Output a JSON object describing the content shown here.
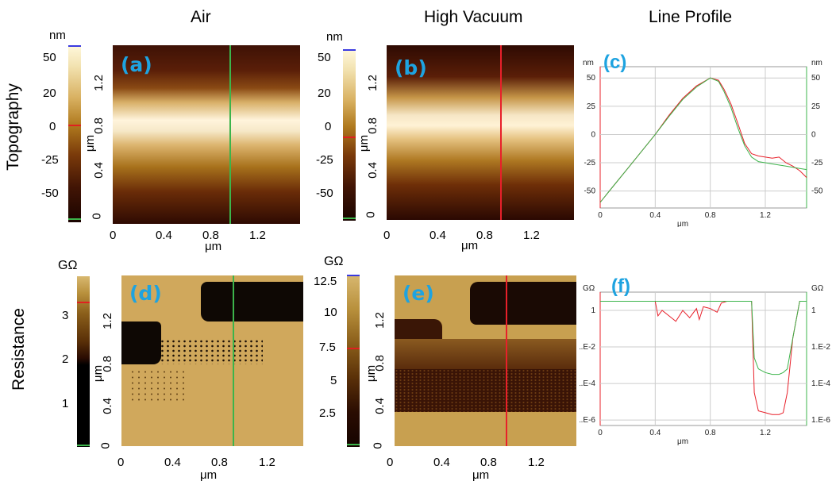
{
  "columns": {
    "air": "Air",
    "vacuum": "High Vacuum",
    "profile": "Line Profile"
  },
  "rows": {
    "topography": "Topography",
    "resistance": "Resistance"
  },
  "panels": {
    "a": "(a)",
    "b": "(b)",
    "c": "(c)",
    "d": "(d)",
    "e": "(e)",
    "f": "(f)"
  },
  "units": {
    "nm": "nm",
    "um": "μm",
    "gohm": "GΩ"
  },
  "colorbar_a": {
    "ticks": [
      "50",
      "20",
      "0",
      "-25",
      "-50"
    ]
  },
  "colorbar_b": {
    "ticks": [
      "50",
      "20",
      "0",
      "-25",
      "-50"
    ]
  },
  "colorbar_d": {
    "ticks": [
      "3",
      "2",
      "1"
    ]
  },
  "colorbar_e": {
    "ticks": [
      "12.5",
      "10",
      "7.5",
      "5",
      "2.5"
    ]
  },
  "map_y_ticks": [
    "1.2",
    "0.8",
    "0.4",
    "0"
  ],
  "map_x_ticks": [
    "0",
    "0.4",
    "0.8",
    "1.2"
  ],
  "colors": {
    "green_line": "#3cb44b",
    "red_line": "#e8202a",
    "tag": "#1ea3e0"
  },
  "chart_data": [
    {
      "type": "line",
      "id": "c",
      "xlabel": "μm",
      "ylabel": "nm",
      "x_ticks": [
        "0",
        "0.4",
        "0.8",
        "1.2"
      ],
      "y_ticks": [
        "50",
        "25",
        "0",
        "-25",
        "-50"
      ],
      "xlim": [
        0,
        1.5
      ],
      "ylim": [
        -65,
        60
      ],
      "series": [
        {
          "color": "#e8202a",
          "x": [
            0,
            0.1,
            0.2,
            0.3,
            0.4,
            0.5,
            0.6,
            0.7,
            0.8,
            0.86,
            0.9,
            0.95,
            1.0,
            1.05,
            1.1,
            1.15,
            1.2,
            1.25,
            1.3,
            1.35,
            1.4,
            1.45,
            1.5
          ],
          "y": [
            -60,
            -45,
            -30,
            -15,
            0,
            17,
            32,
            43,
            50,
            48,
            40,
            27,
            10,
            -8,
            -17,
            -19,
            -20,
            -21,
            -20,
            -25,
            -28,
            -32,
            -38
          ]
        },
        {
          "color": "#3cb44b",
          "x": [
            0,
            0.1,
            0.2,
            0.3,
            0.4,
            0.5,
            0.6,
            0.7,
            0.8,
            0.86,
            0.9,
            0.95,
            1.0,
            1.05,
            1.1,
            1.15,
            1.2,
            1.25,
            1.3,
            1.35,
            1.4,
            1.45,
            1.5
          ],
          "y": [
            -60,
            -45,
            -30,
            -15,
            0,
            16,
            31,
            42,
            50,
            47,
            38,
            24,
            6,
            -10,
            -20,
            -24,
            -25,
            -26,
            -27,
            -28,
            -29,
            -30,
            -31
          ]
        }
      ]
    },
    {
      "type": "line",
      "id": "f",
      "xlabel": "μm",
      "ylabel": "GΩ",
      "x_ticks": [
        "0",
        "0.4",
        "0.8",
        "1.2"
      ],
      "y_ticks": [
        "1",
        "1.E-2",
        "1.E-4",
        "1.E-6"
      ],
      "xlim": [
        0,
        1.5
      ],
      "ylim_log10": [
        -6.3,
        1
      ],
      "series": [
        {
          "color": "#e8202a",
          "x": [
            0,
            0.4,
            0.42,
            0.45,
            0.5,
            0.55,
            0.6,
            0.65,
            0.7,
            0.72,
            0.75,
            0.8,
            0.85,
            0.88,
            0.92,
            1.05,
            1.1,
            1.12,
            1.15,
            1.2,
            1.25,
            1.3,
            1.33,
            1.36,
            1.4,
            1.45,
            1.5
          ],
          "y_log10": [
            0.5,
            0.5,
            -0.3,
            0.0,
            -0.3,
            -0.6,
            0.0,
            -0.4,
            0.1,
            -0.5,
            0.2,
            0.1,
            -0.1,
            0.4,
            0.5,
            0.5,
            0.5,
            -4.5,
            -5.5,
            -5.6,
            -5.7,
            -5.7,
            -5.6,
            -4.5,
            -1.5,
            0.5,
            0.5
          ]
        },
        {
          "color": "#3cb44b",
          "x": [
            0,
            0.4,
            0.42,
            0.5,
            0.6,
            0.7,
            0.8,
            0.9,
            1.05,
            1.1,
            1.12,
            1.15,
            1.2,
            1.25,
            1.3,
            1.33,
            1.36,
            1.4,
            1.45,
            1.5
          ],
          "y_log10": [
            0.5,
            0.5,
            0.5,
            0.5,
            0.5,
            0.5,
            0.5,
            0.5,
            0.5,
            0.5,
            -2.6,
            -3.2,
            -3.4,
            -3.5,
            -3.5,
            -3.4,
            -3.2,
            -1.5,
            0.5,
            0.5
          ]
        }
      ]
    }
  ]
}
